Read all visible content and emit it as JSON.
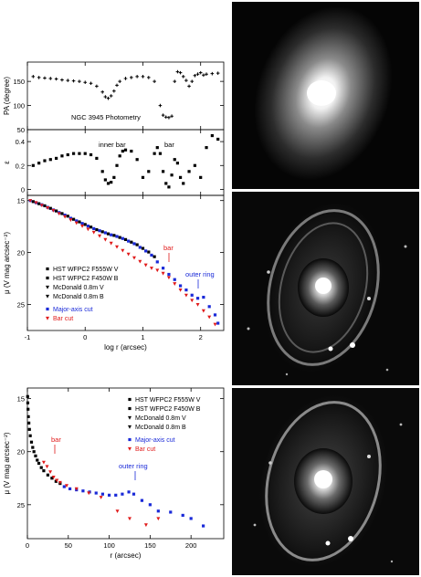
{
  "chart_data": [
    {
      "type": "scatter",
      "ylabel": "PA (degree)",
      "annotation": "NGC 3945 Photometry",
      "ylim": [
        50,
        190
      ],
      "yticks": [
        50,
        100,
        150
      ],
      "xlim": [
        -1,
        2.4
      ],
      "series": [
        {
          "name": "",
          "marker": "plus",
          "x": [
            -0.9,
            -0.8,
            -0.7,
            -0.6,
            -0.5,
            -0.4,
            -0.3,
            -0.2,
            -0.1,
            0.0,
            0.1,
            0.2,
            0.3,
            0.35,
            0.4,
            0.45,
            0.5,
            0.55,
            0.6,
            0.7,
            0.8,
            0.9,
            1.0,
            1.1,
            1.2,
            1.3,
            1.35,
            1.4,
            1.45,
            1.5,
            1.55,
            1.6,
            1.65,
            1.7,
            1.75,
            1.8,
            1.85,
            1.9,
            1.95,
            2.0,
            2.05,
            2.1,
            2.2,
            2.3
          ],
          "y": [
            160,
            158,
            157,
            156,
            155,
            153,
            152,
            151,
            150,
            148,
            146,
            140,
            128,
            118,
            115,
            120,
            130,
            142,
            150,
            156,
            158,
            160,
            160,
            158,
            150,
            100,
            80,
            76,
            75,
            78,
            150,
            170,
            168,
            160,
            152,
            140,
            150,
            162,
            165,
            168,
            163,
            165,
            166,
            167
          ]
        }
      ]
    },
    {
      "type": "scatter",
      "ylabel": "ε",
      "annotations": [
        "inner bar",
        "bar"
      ],
      "ylim": [
        -0.05,
        0.5
      ],
      "yticks": [
        0,
        0.2,
        0.4
      ],
      "xlim": [
        -1,
        2.4
      ],
      "series": [
        {
          "name": "",
          "marker": "square",
          "x": [
            -0.9,
            -0.8,
            -0.7,
            -0.6,
            -0.5,
            -0.4,
            -0.3,
            -0.2,
            -0.1,
            0.0,
            0.1,
            0.2,
            0.3,
            0.35,
            0.4,
            0.45,
            0.5,
            0.55,
            0.6,
            0.65,
            0.7,
            0.8,
            0.9,
            1.0,
            1.1,
            1.2,
            1.25,
            1.3,
            1.35,
            1.4,
            1.45,
            1.5,
            1.55,
            1.6,
            1.65,
            1.7,
            1.8,
            1.9,
            2.0,
            2.1,
            2.2,
            2.3
          ],
          "y": [
            0.2,
            0.22,
            0.24,
            0.25,
            0.26,
            0.28,
            0.29,
            0.3,
            0.3,
            0.3,
            0.29,
            0.26,
            0.15,
            0.08,
            0.05,
            0.06,
            0.1,
            0.2,
            0.28,
            0.32,
            0.33,
            0.32,
            0.25,
            0.1,
            0.15,
            0.3,
            0.35,
            0.3,
            0.15,
            0.05,
            0.02,
            0.12,
            0.25,
            0.22,
            0.1,
            0.05,
            0.15,
            0.2,
            0.1,
            0.35,
            0.45,
            0.42
          ]
        }
      ]
    },
    {
      "type": "scatter",
      "xlabel": "log r (arcsec)",
      "ylabel": "μ (V mag arcsec⁻²)",
      "annotations": [
        "bar",
        "outer ring"
      ],
      "xlim": [
        -1,
        2.4
      ],
      "ylim": [
        27.5,
        14.5
      ],
      "xticks": [
        -1,
        0,
        1,
        2
      ],
      "yticks": [
        15,
        20,
        25
      ],
      "legend": [
        "HST WFPC2 F555W V",
        "HST WFPC2 F450W B",
        "McDonald 0.8m V",
        "McDonald 0.8m B",
        "Major-axis cut",
        "Bar cut"
      ],
      "legend_colors": [
        "#000000",
        "#000000",
        "#000000",
        "#000000",
        "#1a2ad8",
        "#e01a1a"
      ],
      "series": [
        {
          "name": "HST WFPC2 F555W V",
          "marker": "square",
          "color": "#000000",
          "x": [
            -0.9,
            -0.8,
            -0.7,
            -0.6,
            -0.5,
            -0.4,
            -0.3,
            -0.2,
            -0.1,
            0.0,
            0.1,
            0.2,
            0.3,
            0.4,
            0.5,
            0.6,
            0.7,
            0.8,
            0.9,
            1.0,
            1.1,
            1.2
          ],
          "y": [
            15.1,
            15.3,
            15.5,
            15.75,
            16.0,
            16.25,
            16.5,
            16.8,
            17.05,
            17.3,
            17.55,
            17.8,
            18.0,
            18.2,
            18.35,
            18.55,
            18.75,
            19.0,
            19.25,
            19.6,
            19.95,
            20.4
          ]
        },
        {
          "name": "Major-axis cut",
          "marker": "square",
          "color": "#1a2ad8",
          "x": [
            -0.95,
            -0.85,
            -0.75,
            -0.65,
            -0.55,
            -0.45,
            -0.35,
            -0.25,
            -0.15,
            -0.05,
            0.05,
            0.15,
            0.25,
            0.35,
            0.45,
            0.55,
            0.65,
            0.75,
            0.85,
            0.95,
            1.05,
            1.15,
            1.25,
            1.35,
            1.45,
            1.55,
            1.65,
            1.75,
            1.85,
            1.95,
            2.05,
            2.15,
            2.25,
            2.3
          ],
          "y": [
            15.0,
            15.2,
            15.4,
            15.65,
            15.9,
            16.15,
            16.4,
            16.7,
            16.95,
            17.2,
            17.45,
            17.7,
            17.9,
            18.1,
            18.3,
            18.45,
            18.65,
            18.9,
            19.15,
            19.5,
            19.85,
            20.25,
            20.9,
            21.5,
            22.1,
            22.6,
            23.2,
            23.6,
            24.1,
            24.4,
            24.3,
            25.2,
            26.0,
            26.8
          ]
        },
        {
          "name": "Bar cut",
          "marker": "triangle",
          "color": "#e01a1a",
          "x": [
            -0.95,
            -0.85,
            -0.75,
            -0.65,
            -0.55,
            -0.45,
            -0.35,
            -0.25,
            -0.15,
            -0.05,
            0.05,
            0.15,
            0.25,
            0.35,
            0.45,
            0.55,
            0.65,
            0.75,
            0.85,
            0.95,
            1.05,
            1.15,
            1.25,
            1.35,
            1.45,
            1.55,
            1.65,
            1.75,
            1.85,
            1.95,
            2.05,
            2.15,
            2.25
          ],
          "y": [
            15.0,
            15.2,
            15.45,
            15.7,
            15.95,
            16.25,
            16.55,
            16.85,
            17.15,
            17.45,
            17.75,
            18.05,
            18.4,
            18.75,
            19.1,
            19.45,
            19.8,
            20.15,
            20.5,
            20.85,
            21.2,
            21.5,
            21.7,
            22.0,
            22.4,
            23.0,
            23.6,
            24.1,
            24.6,
            25.0,
            25.6,
            26.2,
            26.9
          ]
        }
      ]
    },
    {
      "type": "scatter",
      "xlabel": "r (arcsec)",
      "ylabel": "μ (V mag arcsec⁻²)",
      "annotations": [
        "bar",
        "outer ring"
      ],
      "xlim": [
        0,
        240
      ],
      "ylim": [
        28.2,
        14.0
      ],
      "xticks": [
        0,
        50,
        100,
        150,
        200
      ],
      "yticks": [
        15,
        20,
        25
      ],
      "legend": [
        "HST WFPC2 F555W V",
        "HST WFPC2 F450W B",
        "McDonald 0.8m V",
        "McDonald 0.8m B",
        "Major-axis cut",
        "Bar cut"
      ],
      "legend_colors": [
        "#000000",
        "#000000",
        "#000000",
        "#000000",
        "#1a2ad8",
        "#e01a1a"
      ],
      "series": [
        {
          "name": "HST WFPC2 F555W V",
          "marker": "square",
          "color": "#000000",
          "x": [
            0.3,
            0.5,
            0.8,
            1.2,
            1.8,
            2.5,
            3.5,
            5,
            6.5,
            8,
            10,
            12,
            14,
            17,
            20,
            25,
            30,
            35,
            40
          ],
          "y": [
            14.8,
            15.4,
            16.0,
            16.7,
            17.3,
            17.9,
            18.5,
            19.1,
            19.6,
            20.0,
            20.4,
            20.8,
            21.1,
            21.5,
            21.8,
            22.2,
            22.5,
            22.8,
            23.0
          ]
        },
        {
          "name": "Major-axis cut",
          "marker": "square",
          "color": "#1a2ad8",
          "x": [
            45,
            52,
            60,
            68,
            76,
            84,
            92,
            100,
            108,
            116,
            124,
            130,
            140,
            150,
            160,
            175,
            190,
            200,
            215
          ],
          "y": [
            23.3,
            23.5,
            23.6,
            23.7,
            23.8,
            23.9,
            24.0,
            24.1,
            24.1,
            24.0,
            23.8,
            24.0,
            24.6,
            25.0,
            25.6,
            25.7,
            26.0,
            26.3,
            27.0
          ]
        },
        {
          "name": "Bar cut",
          "marker": "triangle",
          "color": "#e01a1a",
          "x": [
            20,
            24,
            28,
            32,
            36,
            40,
            48,
            60,
            75,
            90,
            110,
            125,
            145,
            160
          ],
          "y": [
            21.0,
            21.4,
            21.9,
            22.4,
            22.7,
            22.9,
            23.2,
            23.5,
            23.9,
            24.3,
            25.6,
            26.3,
            26.9,
            26.3
          ]
        }
      ]
    }
  ]
}
